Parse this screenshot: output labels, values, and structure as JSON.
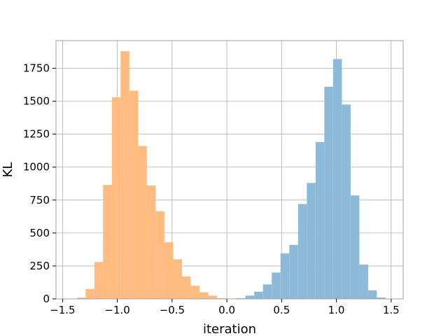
{
  "chart_data": {
    "type": "bar",
    "title": "",
    "xlabel": "iteration",
    "ylabel": "KL",
    "xlim": [
      -1.56,
      1.61
    ],
    "ylim": [
      0,
      1960
    ],
    "grid": true,
    "x_ticks": [
      -1.5,
      -1.0,
      -0.5,
      0.0,
      0.5,
      1.0,
      1.5
    ],
    "x_tick_labels": [
      "−1.5",
      "−1.0",
      "−0.5",
      "0.0",
      "0.5",
      "1.0",
      "1.5"
    ],
    "y_ticks": [
      0,
      250,
      500,
      750,
      1000,
      1250,
      1500,
      1750
    ],
    "y_tick_labels": [
      "0",
      "250",
      "500",
      "750",
      "1000",
      "1250",
      "1500",
      "1750"
    ],
    "series": [
      {
        "color": "#ffbb80",
        "bins": [
          {
            "x0": -1.37,
            "x1": -1.29,
            "value": 10
          },
          {
            "x0": -1.29,
            "x1": -1.21,
            "value": 75
          },
          {
            "x0": -1.21,
            "x1": -1.13,
            "value": 280
          },
          {
            "x0": -1.13,
            "x1": -1.05,
            "value": 865
          },
          {
            "x0": -1.05,
            "x1": -0.97,
            "value": 1530
          },
          {
            "x0": -0.97,
            "x1": -0.89,
            "value": 1880
          },
          {
            "x0": -0.89,
            "x1": -0.81,
            "value": 1580
          },
          {
            "x0": -0.81,
            "x1": -0.73,
            "value": 1160
          },
          {
            "x0": -0.73,
            "x1": -0.65,
            "value": 860
          },
          {
            "x0": -0.65,
            "x1": -0.57,
            "value": 665
          },
          {
            "x0": -0.57,
            "x1": -0.49,
            "value": 430
          },
          {
            "x0": -0.49,
            "x1": -0.41,
            "value": 300
          },
          {
            "x0": -0.41,
            "x1": -0.33,
            "value": 170
          },
          {
            "x0": -0.33,
            "x1": -0.25,
            "value": 100
          },
          {
            "x0": -0.25,
            "x1": -0.17,
            "value": 50
          },
          {
            "x0": -0.17,
            "x1": -0.09,
            "value": 25
          },
          {
            "x0": -0.09,
            "x1": -0.01,
            "value": 5
          }
        ]
      },
      {
        "color": "#8ebad9",
        "bins": [
          {
            "x0": 0.09,
            "x1": 0.17,
            "value": 5
          },
          {
            "x0": 0.17,
            "x1": 0.25,
            "value": 25
          },
          {
            "x0": 0.25,
            "x1": 0.33,
            "value": 55
          },
          {
            "x0": 0.33,
            "x1": 0.41,
            "value": 110
          },
          {
            "x0": 0.41,
            "x1": 0.49,
            "value": 200
          },
          {
            "x0": 0.49,
            "x1": 0.57,
            "value": 345
          },
          {
            "x0": 0.57,
            "x1": 0.65,
            "value": 410
          },
          {
            "x0": 0.65,
            "x1": 0.73,
            "value": 720
          },
          {
            "x0": 0.73,
            "x1": 0.81,
            "value": 880
          },
          {
            "x0": 0.81,
            "x1": 0.89,
            "value": 1190
          },
          {
            "x0": 0.89,
            "x1": 0.97,
            "value": 1610
          },
          {
            "x0": 0.97,
            "x1": 1.05,
            "value": 1820
          },
          {
            "x0": 1.05,
            "x1": 1.13,
            "value": 1475
          },
          {
            "x0": 1.13,
            "x1": 1.21,
            "value": 785
          },
          {
            "x0": 1.21,
            "x1": 1.29,
            "value": 260
          },
          {
            "x0": 1.29,
            "x1": 1.37,
            "value": 65
          },
          {
            "x0": 1.37,
            "x1": 1.45,
            "value": 10
          }
        ]
      }
    ]
  }
}
